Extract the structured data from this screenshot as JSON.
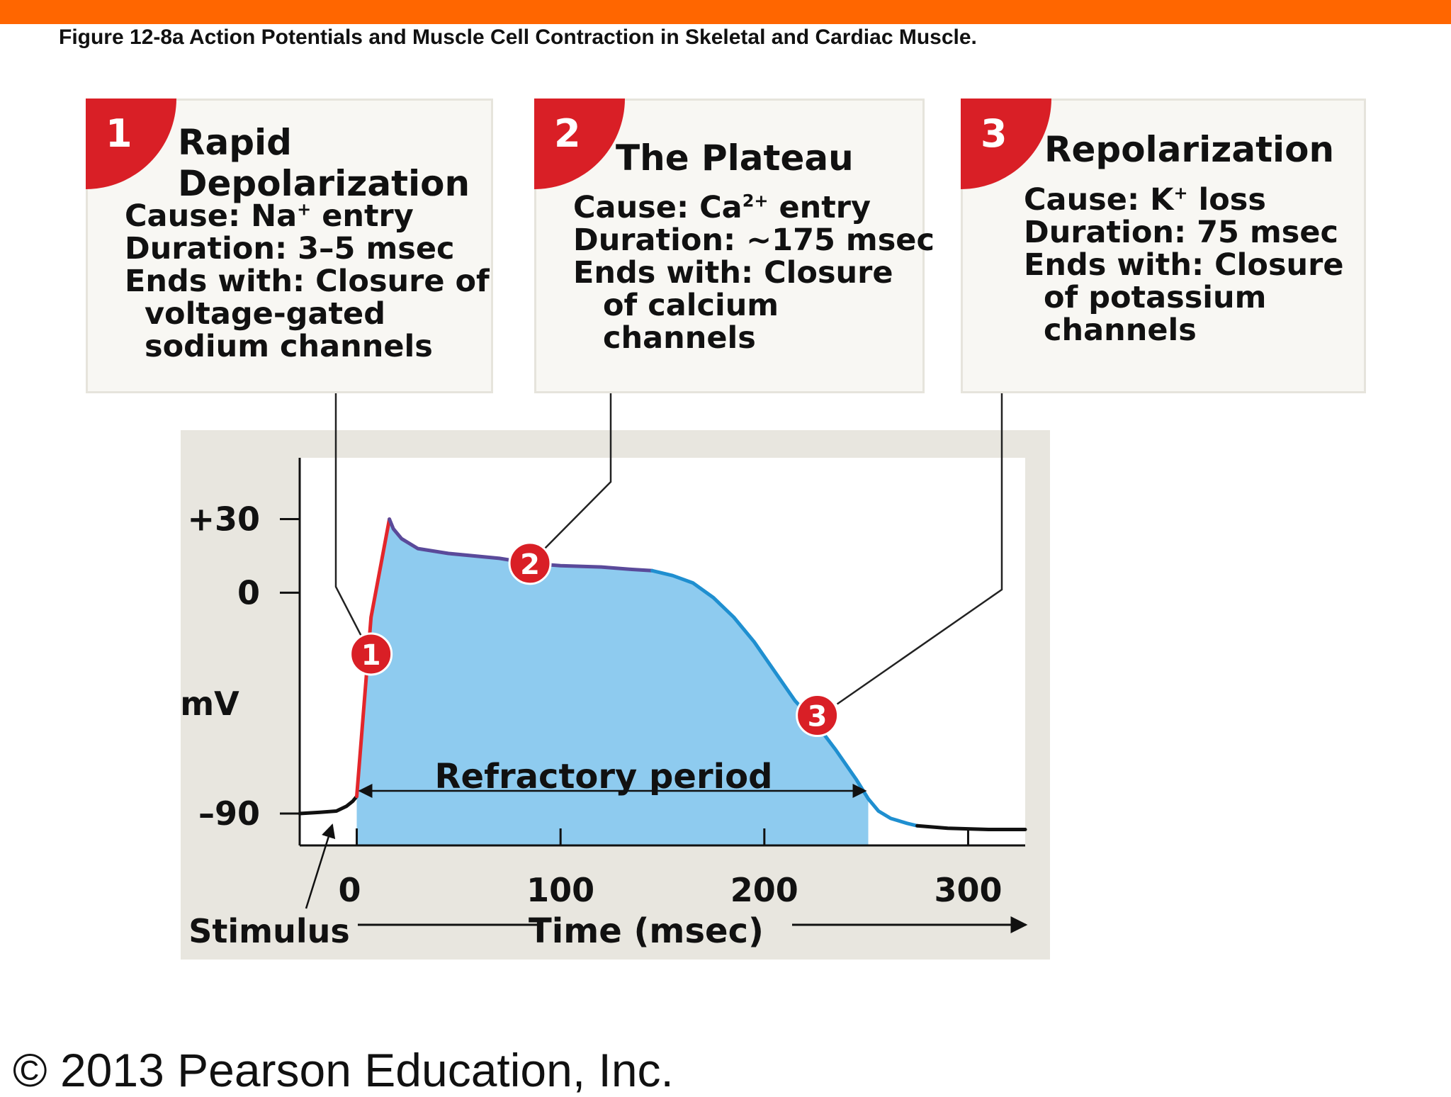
{
  "figure": {
    "title": "Figure 12-8a  Action Potentials and Muscle Cell Contraction in Skeletal and Cardiac Muscle.",
    "copyright": "© 2013 Pearson Education, Inc."
  },
  "steps": [
    {
      "number": "1",
      "title_line1": "Rapid",
      "title_line2": "Depolarization",
      "cause_prefix": "Cause: Na",
      "cause_sup": "+",
      "cause_suffix": " entry",
      "duration": "Duration: 3–5 msec",
      "ends_line1": "Ends with: Closure of",
      "ends_line2": "voltage-gated",
      "ends_line3": "sodium channels"
    },
    {
      "number": "2",
      "title_line1": "The Plateau",
      "cause_prefix": "Cause: Ca",
      "cause_sup": "2+",
      "cause_suffix": " entry",
      "duration": "Duration: ~175 msec",
      "ends_line1": "Ends with: Closure",
      "ends_line2": "of calcium",
      "ends_line3": "channels"
    },
    {
      "number": "3",
      "title_line1": "Repolarization",
      "cause_prefix": "Cause: K",
      "cause_sup": "+",
      "cause_suffix": " loss",
      "duration": "Duration: 75 msec",
      "ends_line1": "Ends with: Closure",
      "ends_line2": "of potassium",
      "ends_line3": "channels"
    }
  ],
  "chart_data": {
    "type": "line",
    "title": "",
    "xlabel": "Time (msec)",
    "ylabel": "mV",
    "xlim": [
      -28,
      328
    ],
    "ylim": [
      -103,
      55
    ],
    "x_ticks": [
      0,
      100,
      200,
      300
    ],
    "x_tick_labels": [
      "0",
      "100",
      "200",
      "300"
    ],
    "y_ticks": [
      30,
      0,
      -90
    ],
    "y_tick_labels": [
      "+30",
      "0",
      "–90"
    ],
    "grid": false,
    "stimulus_label": "Stimulus",
    "stimulus_time": -12,
    "refractory_label": "Refractory period",
    "refractory_period": [
      0,
      251
    ],
    "series": [
      {
        "segment": "resting",
        "color": "#111111",
        "points": [
          [
            -28,
            -90
          ],
          [
            -18,
            -89.5
          ],
          [
            -10,
            -89
          ],
          [
            -5,
            -87
          ],
          [
            -2,
            -85
          ],
          [
            0,
            -83
          ]
        ]
      },
      {
        "segment": "rapid depolarization",
        "color": "#e3262b",
        "points": [
          [
            0,
            -83
          ],
          [
            7,
            -10
          ],
          [
            16,
            30
          ]
        ]
      },
      {
        "segment": "plateau",
        "color": "#5a4a9a",
        "points": [
          [
            16,
            30
          ],
          [
            18,
            26
          ],
          [
            22,
            22
          ],
          [
            30,
            18
          ],
          [
            45,
            16
          ],
          [
            70,
            14
          ],
          [
            85,
            12
          ],
          [
            100,
            11
          ],
          [
            120,
            10.5
          ],
          [
            135,
            9.5
          ],
          [
            145,
            9
          ]
        ]
      },
      {
        "segment": "repolarization",
        "color": "#1f8fd0",
        "points": [
          [
            145,
            9
          ],
          [
            155,
            7
          ],
          [
            165,
            4
          ],
          [
            175,
            -2
          ],
          [
            185,
            -10
          ],
          [
            195,
            -20
          ],
          [
            205,
            -32
          ],
          [
            215,
            -44
          ],
          [
            225,
            -53
          ],
          [
            235,
            -64
          ],
          [
            245,
            -76
          ],
          [
            251,
            -84
          ],
          [
            256,
            -89
          ],
          [
            262,
            -92
          ],
          [
            270,
            -94
          ],
          [
            275,
            -95
          ]
        ]
      },
      {
        "segment": "recovery",
        "color": "#111111",
        "points": [
          [
            275,
            -95
          ],
          [
            290,
            -96
          ],
          [
            310,
            -96.5
          ],
          [
            328,
            -96.5
          ]
        ]
      }
    ],
    "markers": [
      {
        "label": "1",
        "x": 7,
        "y": -25
      },
      {
        "label": "2",
        "x": 85,
        "y": 12
      },
      {
        "label": "3",
        "x": 226,
        "y": -50
      }
    ],
    "colors": {
      "fill": "#8ecbef",
      "panel_background": "#e8e6df",
      "marker": "#d91f26"
    }
  }
}
